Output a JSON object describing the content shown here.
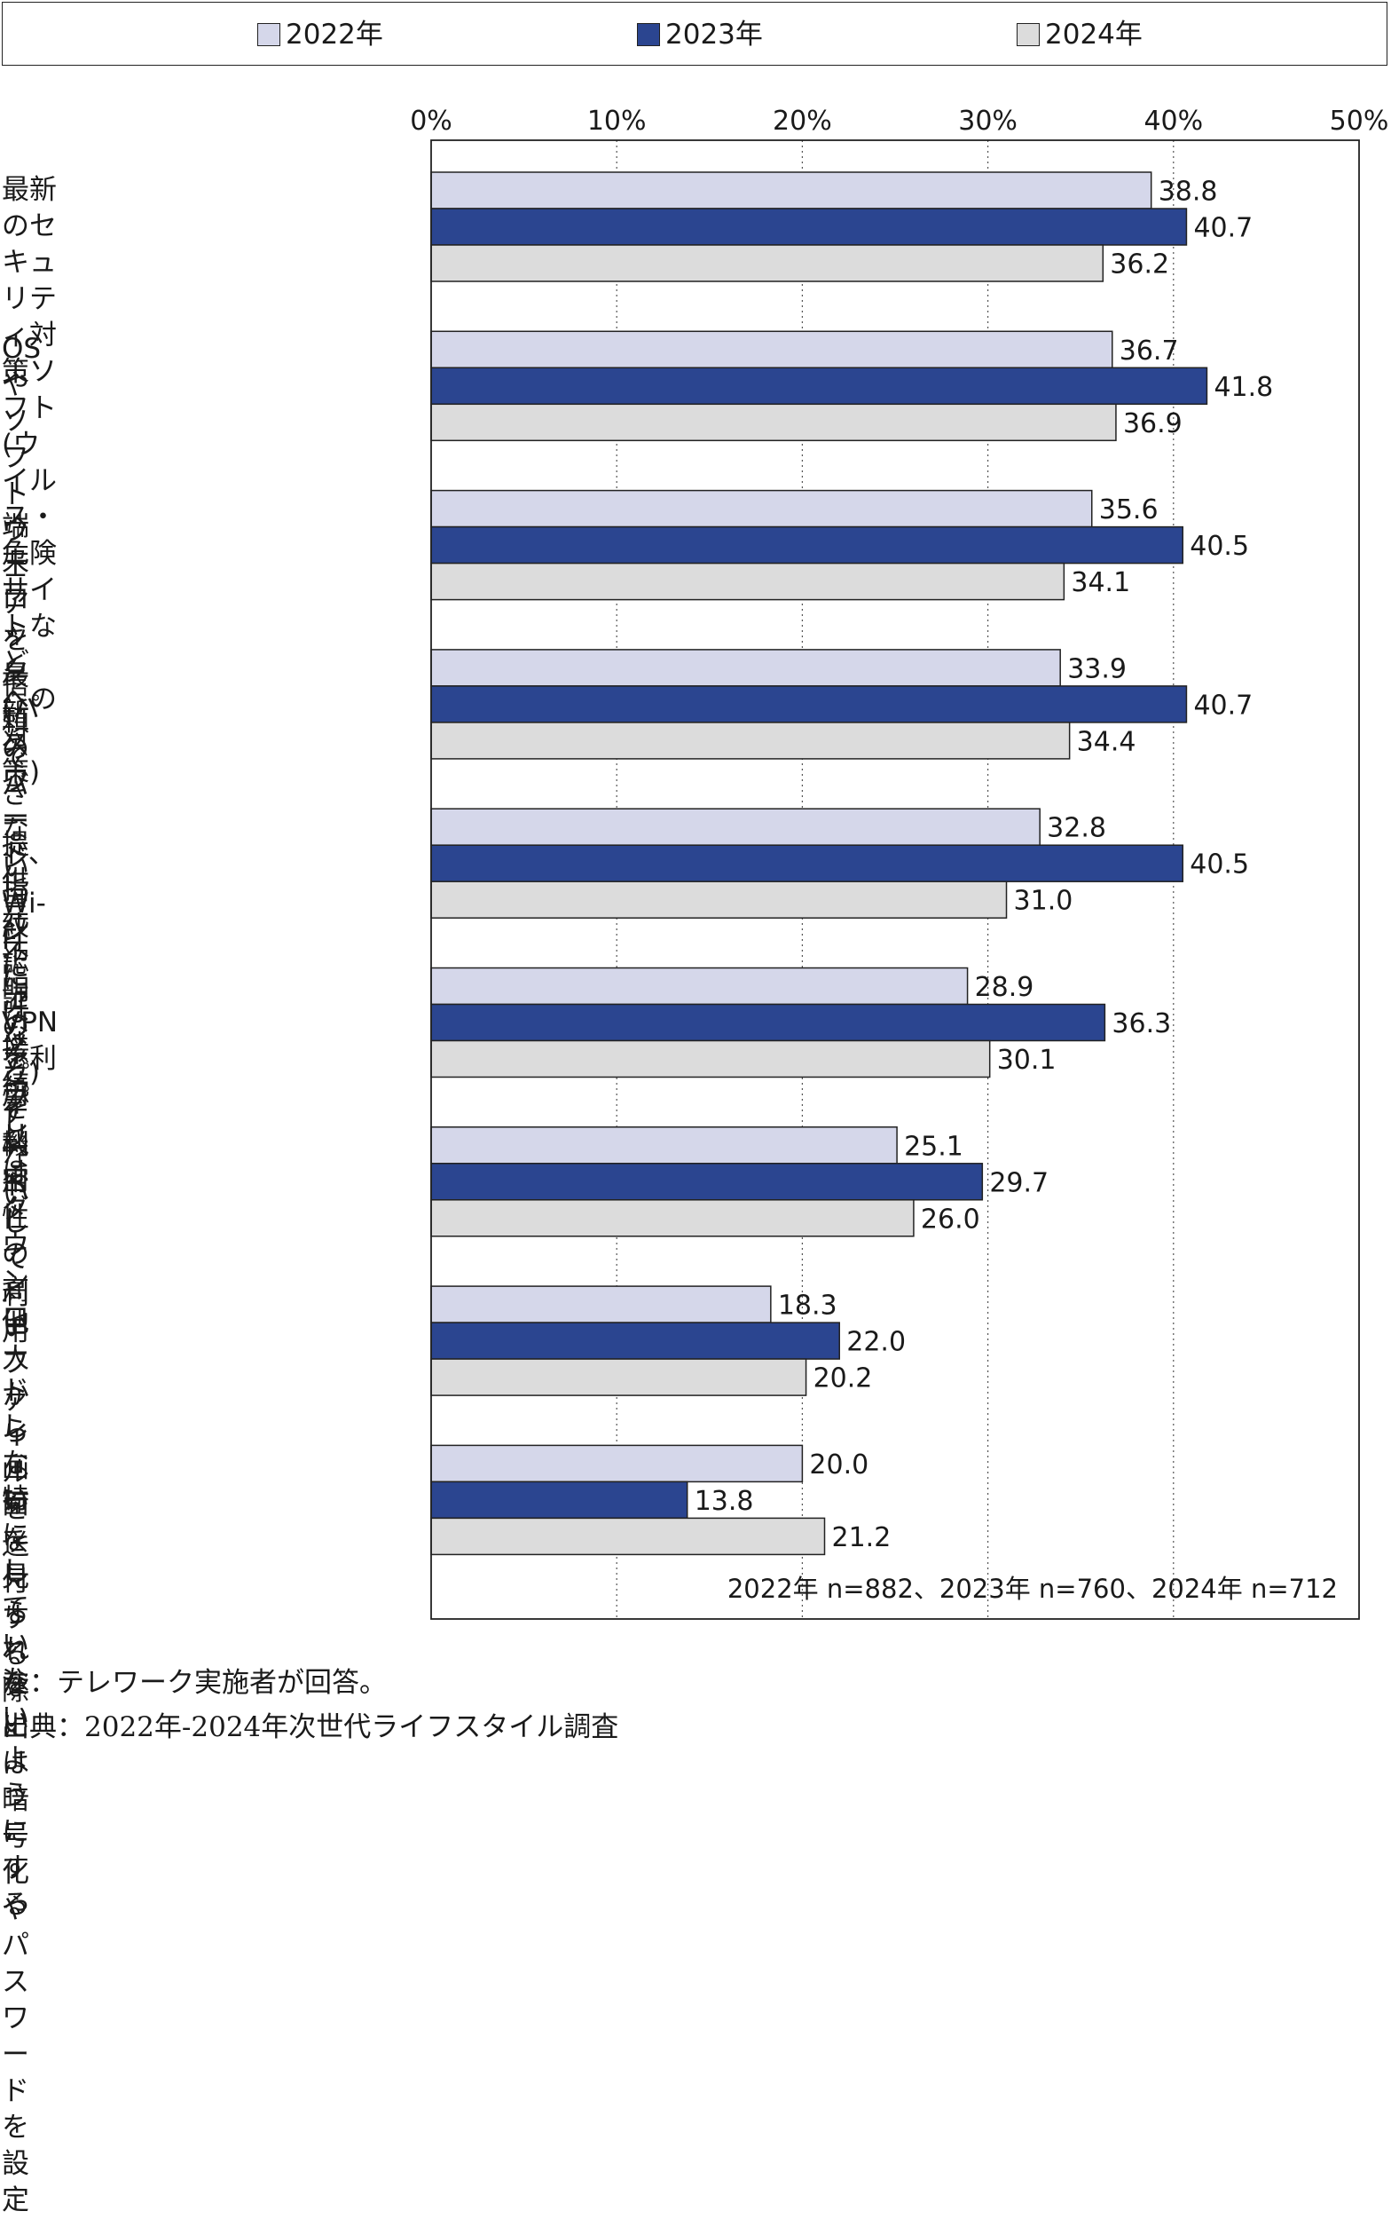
{
  "legend": {
    "items": [
      {
        "label": "2022年",
        "color": "#d5d7ea"
      },
      {
        "label": "2023年",
        "color": "#2b4590"
      },
      {
        "label": "2024年",
        "color": "#dcdcdc"
      }
    ]
  },
  "chart_data": {
    "type": "bar",
    "orientation": "horizontal",
    "categories": [
      "最新のセキュリティ対策ソフト\n(ウイルス・危険サイトなど\nへの対策)",
      "OSやソフトウェアを\n最新のバージョンに\nアップデートして利用",
      "端末ロック(パスワード、\n指紋認証など)を利用",
      "信頼できないWi-Fiには\n接続しない",
      "提供元不明のアプリは\nダウンロードしない",
      "VPNを利用",
      "機密性の高いファイルを\n送付する際には暗号化や\nパスワードを設定",
      "他人から画面を\n見られないようにする",
      "特にしていない"
    ],
    "series": [
      {
        "name": "2022年",
        "color": "#d5d7ea",
        "values": [
          38.8,
          36.7,
          35.6,
          33.9,
          32.8,
          28.9,
          25.1,
          18.3,
          20.0
        ]
      },
      {
        "name": "2023年",
        "color": "#2b4590",
        "values": [
          40.7,
          41.8,
          40.5,
          40.7,
          40.5,
          36.3,
          29.7,
          22.0,
          13.8
        ]
      },
      {
        "name": "2024年",
        "color": "#dcdcdc",
        "values": [
          36.2,
          36.9,
          34.1,
          34.4,
          31.0,
          30.1,
          26.0,
          20.2,
          21.2
        ]
      }
    ],
    "xlim": [
      0,
      50
    ],
    "xticks": [
      "0%",
      "10%",
      "20%",
      "30%",
      "40%",
      "50%"
    ],
    "grid": true,
    "legend_position": "top",
    "annotation": "2022年 n=882、2023年 n=760、2024年 n=712"
  },
  "notes": {
    "note": "注：テレワーク実施者が回答。",
    "source": "出典：2022年-2024年次世代ライフスタイル調査"
  }
}
